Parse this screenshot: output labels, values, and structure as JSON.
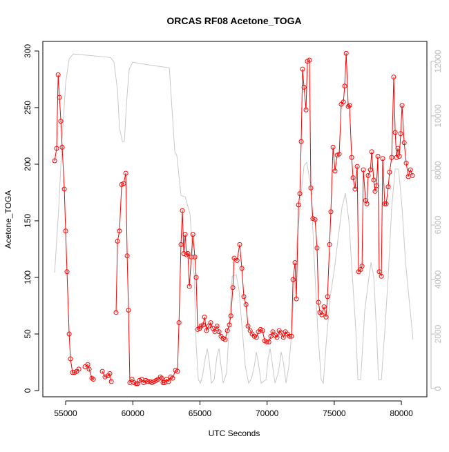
{
  "chart_data": {
    "type": "line",
    "title": "ORCAS RF08 Acetone_TOGA",
    "x_label": "UTC Seconds",
    "y_label": "Acetone_TOGA",
    "xlim": [
      53300,
      81900
    ],
    "xticks": [
      55000,
      60000,
      65000,
      70000,
      75000,
      80000
    ],
    "ylim": [
      -5.5,
      308.5
    ],
    "yticks": [
      0,
      50,
      100,
      150,
      200,
      250,
      300
    ],
    "y2lim": [
      -300,
      12730
    ],
    "y2ticks": [
      0,
      2000,
      4000,
      6000,
      8000,
      10000,
      12000
    ],
    "series": [
      {
        "color": "#c8c8c8",
        "axis": "y2",
        "x": [
          54180,
          54490,
          54740,
          55000,
          55260,
          55570,
          58340,
          58600,
          58860,
          59010,
          59220,
          59370,
          59530,
          59730,
          59990,
          60910,
          62720,
          63130,
          63280,
          63590,
          63900,
          64260,
          64570,
          64720,
          64880,
          65030,
          65190,
          65390,
          65550,
          65700,
          65850,
          66060,
          66270,
          66420,
          66570,
          66730,
          66990,
          67190,
          67400,
          67700,
          67910,
          68120,
          68370,
          68630,
          68840,
          69050,
          69200,
          69350,
          69560,
          69920,
          70070,
          70230,
          70380,
          70590,
          70840,
          71050,
          71210,
          71410,
          71620,
          71820,
          71980,
          72230,
          72490,
          72750,
          72950,
          73260,
          73520,
          73780,
          74030,
          74190,
          74390,
          74700,
          75010,
          75320,
          75580,
          75830,
          76090,
          76350,
          76610,
          76760,
          76970,
          77270,
          77530,
          77740,
          77940,
          78150,
          78300,
          78510,
          78760,
          79020,
          79280,
          79540,
          79790,
          80050,
          80310,
          80560,
          80870
        ],
        "values": [
          4250,
          6650,
          9180,
          11200,
          12090,
          12270,
          12140,
          11970,
          10950,
          9560,
          9060,
          9060,
          10450,
          11710,
          11970,
          11890,
          11760,
          8680,
          8550,
          7080,
          7030,
          6400,
          4120,
          1590,
          330,
          200,
          460,
          1090,
          1470,
          960,
          200,
          330,
          1210,
          1470,
          830,
          200,
          580,
          2350,
          4120,
          4170,
          3620,
          2350,
          830,
          200,
          380,
          830,
          1340,
          960,
          200,
          330,
          1090,
          1470,
          960,
          200,
          580,
          1340,
          960,
          200,
          830,
          1970,
          3360,
          5390,
          6910,
          8170,
          8300,
          7410,
          4630,
          2100,
          330,
          200,
          1590,
          3360,
          4380,
          5640,
          6650,
          7160,
          6150,
          4120,
          2100,
          330,
          330,
          2860,
          3870,
          4630,
          4120,
          2100,
          330,
          330,
          2100,
          4120,
          6650,
          8050,
          8050,
          6650,
          4630,
          3360,
          1800
        ]
      },
      {
        "color": "#ff0000",
        "marker": "circle",
        "x": [
          54180,
          54330,
          54440,
          54540,
          54640,
          54740,
          54900,
          55000,
          55100,
          55260,
          55360,
          55510,
          55670,
          55820,
          55980,
          56180,
          56440,
          56650,
          56750,
          56950,
          57060,
          57320,
          57730,
          57930,
          58140,
          58290,
          58400,
          58550,
          58750,
          58860,
          59010,
          59170,
          59320,
          59480,
          59580,
          59680,
          59780,
          59940,
          60090,
          60250,
          60350,
          60500,
          60660,
          60810,
          60970,
          61120,
          61280,
          61430,
          61580,
          61740,
          61890,
          62050,
          62150,
          62250,
          62360,
          62510,
          62670,
          62820,
          62970,
          63180,
          63330,
          63440,
          63590,
          63690,
          63800,
          63900,
          64000,
          64100,
          64210,
          64360,
          64470,
          64620,
          64720,
          64830,
          64980,
          65080,
          65240,
          65340,
          65490,
          65650,
          65800,
          65960,
          66110,
          66270,
          66420,
          66570,
          66730,
          66880,
          67040,
          67190,
          67300,
          67450,
          67550,
          67760,
          67960,
          68120,
          68270,
          68430,
          68580,
          68740,
          68890,
          69050,
          69200,
          69350,
          69510,
          69660,
          69820,
          69970,
          70130,
          70280,
          70430,
          70590,
          70740,
          70900,
          71050,
          71210,
          71360,
          71510,
          71670,
          71820,
          71930,
          72080,
          72180,
          72340,
          72440,
          72540,
          72640,
          72750,
          72900,
          73000,
          73160,
          73260,
          73410,
          73570,
          73720,
          73830,
          73930,
          74080,
          74240,
          74390,
          74500,
          74650,
          74750,
          74910,
          75060,
          75220,
          75370,
          75520,
          75680,
          75780,
          75890,
          76040,
          76140,
          76300,
          76400,
          76550,
          76710,
          76810,
          76970,
          77070,
          77170,
          77330,
          77430,
          77530,
          77690,
          77790,
          77940,
          78040,
          78150,
          78250,
          78350,
          78510,
          78610,
          78760,
          78870,
          79020,
          79120,
          79280,
          79430,
          79540,
          79640,
          79740,
          79850,
          79950,
          80050,
          80210,
          80360,
          80510,
          80670,
          80820
        ],
        "values": [
          203,
          214,
          279,
          259,
          238,
          215,
          178,
          141,
          105,
          50,
          28,
          16,
          16,
          17,
          19,
          null,
          21,
          23,
          19,
          11,
          10,
          null,
          17,
          12,
          13,
          15,
          8,
          null,
          69,
          132,
          141,
          182,
          183,
          192,
          119,
          71,
          7,
          10,
          7,
          6,
          6,
          9,
          10,
          7,
          9,
          8,
          8,
          7,
          8,
          9,
          10,
          12,
          11,
          7,
          7,
          10,
          8,
          12,
          11,
          18,
          17,
          60,
          129,
          159,
          121,
          138,
          120,
          121,
          92,
          118,
          138,
          118,
          100,
          54,
          55,
          57,
          58,
          65,
          53,
          57,
          60,
          55,
          52,
          57,
          52,
          48,
          46,
          45,
          53,
          58,
          66,
          91,
          117,
          115,
          129,
          108,
          83,
          76,
          57,
          53,
          50,
          48,
          47,
          52,
          54,
          53,
          44,
          43,
          43,
          48,
          52,
          49,
          47,
          53,
          51,
          47,
          52,
          50,
          48,
          48,
          98,
          113,
          81,
          164,
          174,
          220,
          284,
          268,
          248,
          291,
          292,
          179,
          152,
          151,
          126,
          78,
          69,
          67,
          74,
          65,
          83,
          129,
          158,
          215,
          194,
          208,
          209,
          253,
          255,
          269,
          298,
          251,
          252,
          206,
          188,
          178,
          198,
          105,
          107,
          110,
          195,
          168,
          165,
          190,
          195,
          211,
          186,
          176,
          181,
          207,
          105,
          101,
          205,
          165,
          165,
          180,
          193,
          206,
          277,
          228,
          206,
          214,
          207,
          227,
          252,
          219,
          201,
          189,
          195,
          190
        ]
      }
    ]
  }
}
